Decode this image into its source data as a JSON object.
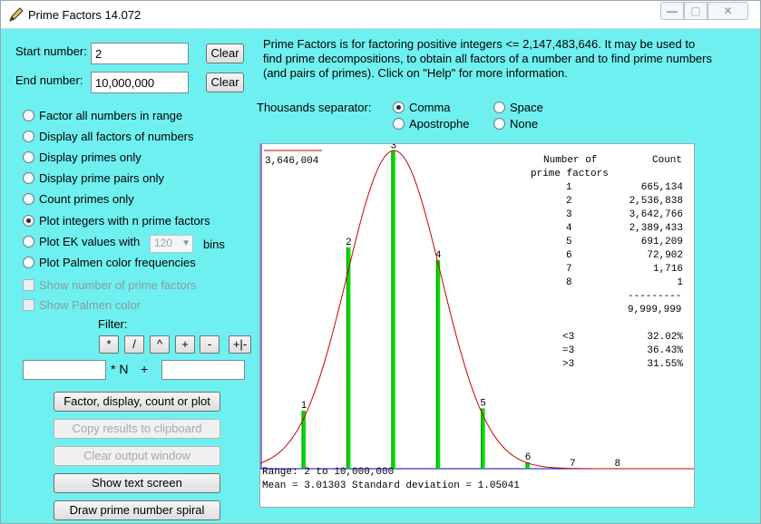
{
  "window": {
    "title": "Prime Factors 14.072",
    "min": "—",
    "max": "▢",
    "close": "✕"
  },
  "inputs": {
    "start_label": "Start number:",
    "start_value": "2",
    "end_label": "End number:",
    "end_value": "10,000,000",
    "clear_label": "Clear"
  },
  "modes": [
    {
      "label": "Factor all numbers in range",
      "checked": false
    },
    {
      "label": "Display all factors of numbers",
      "checked": false
    },
    {
      "label": "Display primes only",
      "checked": false
    },
    {
      "label": "Display prime pairs only",
      "checked": false
    },
    {
      "label": "Count primes only",
      "checked": false
    },
    {
      "label": "Plot integers with n  prime factors",
      "checked": true
    },
    {
      "label": "Plot EK values with",
      "checked": false
    },
    {
      "label": "Plot Palmen color frequencies",
      "checked": false
    }
  ],
  "ek": {
    "bins_value": "120",
    "bins_label": "bins"
  },
  "options": {
    "show_num_factors": "Show number of prime factors",
    "show_palmen": "Show Palmen color"
  },
  "filter": {
    "label": "Filter:",
    "ops": [
      "*",
      "/",
      "^",
      "+",
      "-",
      "+|-"
    ],
    "times_n": "* N",
    "plus": "+"
  },
  "buttons": {
    "factor": "Factor, display, count or plot",
    "copy": "Copy results to clipboard",
    "clear_output": "Clear output window",
    "text_screen": "Show text screen",
    "spiral": "Draw prime number spiral"
  },
  "intro": "Prime Factors is for factoring positive integers <= 2,147,483,646.  It may be used to find prime decompositions, to obtain all factors of a number and to find prime numbers (and pairs of primes).  Click on \"Help\" for more information.",
  "separator": {
    "label": "Thousands separator:",
    "options": [
      {
        "label": "Comma",
        "checked": true
      },
      {
        "label": "Space",
        "checked": false
      },
      {
        "label": "Apostrophe",
        "checked": false
      },
      {
        "label": "None",
        "checked": false
      }
    ]
  },
  "plot": {
    "max_label": "3,646,004",
    "table_header1": "Number of",
    "table_header2": "prime factors",
    "count_header": "Count",
    "rows": [
      {
        "n": "1",
        "count": "665,134"
      },
      {
        "n": "2",
        "count": "2,536,838"
      },
      {
        "n": "3",
        "count": "3,642,766"
      },
      {
        "n": "4",
        "count": "2,389,433"
      },
      {
        "n": "5",
        "count": "691,209"
      },
      {
        "n": "6",
        "count": "72,902"
      },
      {
        "n": "7",
        "count": "1,716"
      },
      {
        "n": "8",
        "count": "1"
      }
    ],
    "divider": "---------",
    "total": "9,999,999",
    "pct": [
      {
        "label": "<3",
        "value": "32.02%"
      },
      {
        "label": "=3",
        "value": "36.43%"
      },
      {
        "label": ">3",
        "value": "31.55%"
      }
    ],
    "range": "Range: 2 to 10,000,000",
    "mean": "Mean = 3.01303 Standard deviation = 1.05041"
  },
  "chart_data": {
    "type": "bar",
    "categories": [
      "1",
      "2",
      "3",
      "4",
      "5",
      "6",
      "7",
      "8"
    ],
    "values": [
      665134,
      2536838,
      3642766,
      2389433,
      691209,
      72902,
      1716,
      1
    ],
    "ymax": 3646004,
    "x_ticks": [
      "0.912",
      "1.963",
      "3.013",
      "4.063",
      "5.114",
      "6.164",
      "7.215",
      "8.265"
    ],
    "curve": {
      "mean": 3.01303,
      "sd": 1.05041
    },
    "colors": {
      "bar": "#00dd00",
      "bar_edge": "#008800",
      "curve": "#cc0000",
      "tick": "#cc0000"
    }
  }
}
